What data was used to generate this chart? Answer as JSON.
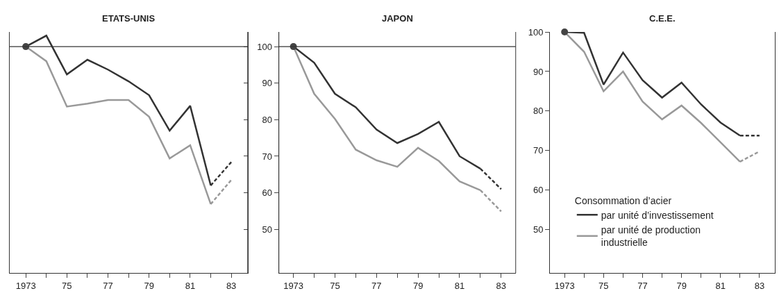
{
  "chart_data": [
    {
      "type": "line",
      "title": "ETATS-UNIS",
      "x": [
        1973,
        1974,
        1975,
        1976,
        1977,
        1978,
        1979,
        1980,
        1981,
        1982
      ],
      "xlim": [
        1972.2,
        1983.8
      ],
      "ylim": [
        38,
        104
      ],
      "tick_labels": "x",
      "xticks": [
        {
          "value": 1973,
          "label": "1973"
        },
        {
          "value": 1974,
          "label": null
        },
        {
          "value": 1975,
          "label": "75"
        },
        {
          "value": 1976,
          "label": null
        },
        {
          "value": 1977,
          "label": "77"
        },
        {
          "value": 1978,
          "label": null
        },
        {
          "value": 1979,
          "label": "79"
        },
        {
          "value": 1980,
          "label": null
        },
        {
          "value": 1981,
          "label": "81"
        },
        {
          "value": 1982,
          "label": null
        },
        {
          "value": 1983,
          "label": "83"
        }
      ],
      "yticks": [
        {
          "value": 50,
          "label": null
        },
        {
          "value": 60,
          "label": null
        },
        {
          "value": 70,
          "label": null
        },
        {
          "value": 80,
          "label": null
        },
        {
          "value": 90,
          "label": null
        },
        {
          "value": 100,
          "label": null
        }
      ],
      "ref_lines": [
        {
          "axis": "y",
          "value": 100,
          "color": "#333333"
        }
      ],
      "series": [
        {
          "color": "#333333",
          "values": [
            100,
            103,
            92.4,
            96.4,
            93.7,
            90.5,
            86.7,
            77.0,
            83.8,
            62.0
          ]
        },
        {
          "color": "#333333",
          "x": [
            1982,
            1983
          ],
          "values": [
            62.0,
            68.4
          ],
          "line_style": "dashed"
        },
        {
          "color": "#999999",
          "values": [
            100,
            96.0,
            83.6,
            84.4,
            85.4,
            85.4,
            80.8,
            69.4,
            73.0,
            56.9
          ]
        },
        {
          "color": "#999999",
          "x": [
            1982,
            1983
          ],
          "values": [
            56.9,
            63.5
          ],
          "line_style": "dashed"
        },
        {
          "type": "scatter",
          "color": "#444444",
          "x": [
            1973
          ],
          "values": [
            100
          ],
          "marker": "circle"
        }
      ]
    },
    {
      "type": "line",
      "title": "JAPON",
      "x": [
        1973,
        1974,
        1975,
        1976,
        1977,
        1978,
        1979,
        1980,
        1981,
        1982
      ],
      "xlim": [
        1972.3,
        1983.7
      ],
      "ylim": [
        38,
        104
      ],
      "ref_lines": [
        {
          "axis": "y",
          "value": 100,
          "color": "#333333"
        }
      ],
      "xticks": [
        {
          "value": 1973,
          "label": "1973"
        },
        {
          "value": 1974,
          "label": null
        },
        {
          "value": 1975,
          "label": "75"
        },
        {
          "value": 1976,
          "label": null
        },
        {
          "value": 1977,
          "label": "77"
        },
        {
          "value": 1978,
          "label": null
        },
        {
          "value": 1979,
          "label": "79"
        },
        {
          "value": 1980,
          "label": null
        },
        {
          "value": 1981,
          "label": "81"
        },
        {
          "value": 1982,
          "label": null
        },
        {
          "value": 1983,
          "label": "83"
        }
      ],
      "yticks": [
        50,
        60,
        70,
        80,
        90,
        100
      ],
      "series": [
        {
          "color": "#333333",
          "values": [
            100,
            95.6,
            87.1,
            83.4,
            77.3,
            73.6,
            76.1,
            79.4,
            70.0,
            66.6
          ]
        },
        {
          "color": "#333333",
          "x": [
            1982,
            1983
          ],
          "values": [
            66.6,
            61.0
          ],
          "line_style": "dashed"
        },
        {
          "color": "#999999",
          "values": [
            100,
            87.1,
            80.2,
            71.8,
            68.9,
            67.1,
            72.3,
            68.7,
            63.1,
            60.7
          ]
        },
        {
          "color": "#999999",
          "x": [
            1982,
            1983
          ],
          "values": [
            60.7,
            54.9
          ],
          "line_style": "dashed"
        },
        {
          "type": "scatter",
          "color": "#444444",
          "x": [
            1973
          ],
          "values": [
            100
          ],
          "marker": "circle"
        }
      ]
    },
    {
      "type": "line",
      "title": "C.E.E.",
      "x": [
        1973,
        1974,
        1975,
        1976,
        1977,
        1978,
        1979,
        1980,
        1981,
        1982
      ],
      "xlim": [
        1972.25,
        1983.8
      ],
      "ylim": [
        39,
        100
      ],
      "xticks": [
        {
          "value": 1973,
          "label": "1973"
        },
        {
          "value": 1974,
          "label": null
        },
        {
          "value": 1975,
          "label": "75"
        },
        {
          "value": 1976,
          "label": null
        },
        {
          "value": 1977,
          "label": "77"
        },
        {
          "value": 1978,
          "label": null
        },
        {
          "value": 1979,
          "label": "79"
        },
        {
          "value": 1980,
          "label": null
        },
        {
          "value": 1981,
          "label": "81"
        },
        {
          "value": 1982,
          "label": null
        },
        {
          "value": 1983,
          "label": "83"
        }
      ],
      "yticks": [
        50,
        60,
        70,
        80,
        90,
        100
      ],
      "legend": "bottom",
      "legend_title": "Consommation d’acier",
      "series": [
        {
          "name": "par unité d’investissement",
          "color": "#333333",
          "values": [
            100,
            99.8,
            86.7,
            94.8,
            87.8,
            83.4,
            87.2,
            81.7,
            77.1,
            73.8
          ]
        },
        {
          "color": "#333333",
          "x": [
            1982,
            1983
          ],
          "values": [
            73.8,
            73.8
          ],
          "line_style": "dashed"
        },
        {
          "name": "par unité de production industrielle",
          "color": "#999999",
          "values": [
            100,
            95.0,
            85.0,
            90.0,
            82.4,
            77.9,
            81.4,
            77.0,
            72.1,
            67.2
          ]
        },
        {
          "color": "#999999",
          "x": [
            1982,
            1983
          ],
          "values": [
            67.2,
            69.8
          ],
          "line_style": "dashed"
        },
        {
          "type": "scatter",
          "color": "#444444",
          "x": [
            1973
          ],
          "values": [
            100
          ],
          "marker": "circle"
        }
      ]
    }
  ]
}
